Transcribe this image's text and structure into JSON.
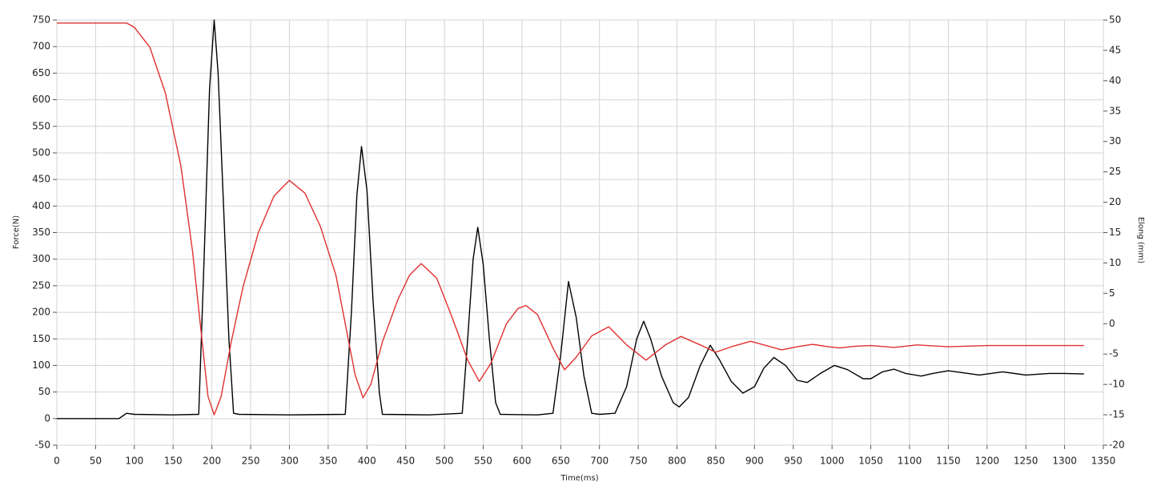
{
  "chart_data": {
    "type": "line",
    "x_label": "Time(ms)",
    "y_label": "Force(N)",
    "y2_label": "Elong (mm)",
    "grid": true,
    "xlim": [
      0,
      1350
    ],
    "xticks": [
      0,
      50,
      100,
      150,
      200,
      250,
      300,
      350,
      400,
      450,
      500,
      550,
      600,
      650,
      700,
      750,
      800,
      850,
      900,
      950,
      1000,
      1050,
      1100,
      1150,
      1200,
      1250,
      1300,
      1350
    ],
    "ylim": [
      -50,
      750
    ],
    "yticks": [
      -50,
      0,
      50,
      100,
      150,
      200,
      250,
      300,
      350,
      400,
      450,
      500,
      550,
      600,
      650,
      700,
      750
    ],
    "y2lim": [
      -20,
      50
    ],
    "y2ticks": [
      -20,
      -15,
      -10,
      -5,
      0,
      5,
      10,
      15,
      20,
      25,
      30,
      35,
      40,
      45,
      50
    ],
    "series": [
      {
        "color": "#000000",
        "axis": "y",
        "x": [
          0,
          80,
          85,
          90,
          100,
          150,
          183,
          190,
          197,
          203,
          208,
          215,
          222,
          228,
          235,
          300,
          372,
          380,
          387,
          393,
          400,
          408,
          416,
          420,
          480,
          523,
          530,
          537,
          543,
          550,
          558,
          566,
          572,
          620,
          640,
          650,
          660,
          670,
          680,
          690,
          700,
          720,
          735,
          748,
          757,
          766,
          780,
          795,
          803,
          815,
          830,
          843,
          855,
          870,
          885,
          900,
          912,
          925,
          940,
          955,
          968,
          985,
          1003,
          1020,
          1040,
          1050,
          1065,
          1080,
          1095,
          1115,
          1130,
          1150,
          1170,
          1190,
          1220,
          1250,
          1280,
          1300,
          1325
        ],
        "values": [
          0,
          0,
          5,
          10,
          8,
          7,
          8,
          300,
          620,
          750,
          650,
          400,
          150,
          10,
          8,
          7,
          8,
          200,
          420,
          512,
          430,
          220,
          50,
          8,
          7,
          10,
          150,
          300,
          360,
          290,
          150,
          30,
          8,
          7,
          10,
          120,
          258,
          190,
          80,
          10,
          8,
          10,
          60,
          150,
          183,
          150,
          80,
          30,
          22,
          40,
          100,
          138,
          110,
          70,
          48,
          60,
          95,
          115,
          100,
          72,
          68,
          85,
          100,
          92,
          75,
          75,
          88,
          93,
          85,
          80,
          85,
          90,
          86,
          82,
          88,
          82,
          85,
          85,
          84
        ]
      },
      {
        "color": "#e03030",
        "axis": "y2",
        "x": [
          0,
          90,
          100,
          120,
          140,
          160,
          175,
          185,
          195,
          203,
          212,
          225,
          240,
          260,
          280,
          300,
          320,
          340,
          360,
          375,
          385,
          395,
          405,
          420,
          440,
          455,
          470,
          490,
          510,
          530,
          545,
          560,
          580,
          595,
          605,
          620,
          640,
          655,
          670,
          690,
          712,
          735,
          760,
          785,
          805,
          830,
          850,
          870,
          895,
          915,
          935,
          955,
          975,
          995,
          1010,
          1030,
          1050,
          1080,
          1110,
          1150,
          1200,
          1325
        ],
        "values": [
          49.5,
          49.5,
          48.8,
          45.5,
          38,
          26,
          12,
          0,
          -12,
          -15,
          -12,
          -3,
          6,
          15,
          21,
          23.6,
          21.5,
          16,
          8,
          -2,
          -8.5,
          -12.2,
          -10,
          -3,
          4,
          8,
          9.9,
          7.5,
          1,
          -6,
          -9.5,
          -6.5,
          0,
          2.5,
          3,
          1.5,
          -4,
          -7.6,
          -5.5,
          -2,
          -0.5,
          -3.5,
          -6,
          -3.5,
          -2.1,
          -3.5,
          -4.7,
          -3.8,
          -2.9,
          -3.6,
          -4.3,
          -3.8,
          -3.4,
          -3.8,
          -4,
          -3.7,
          -3.6,
          -3.9,
          -3.5,
          -3.8,
          -3.6,
          -3.6
        ]
      }
    ]
  }
}
